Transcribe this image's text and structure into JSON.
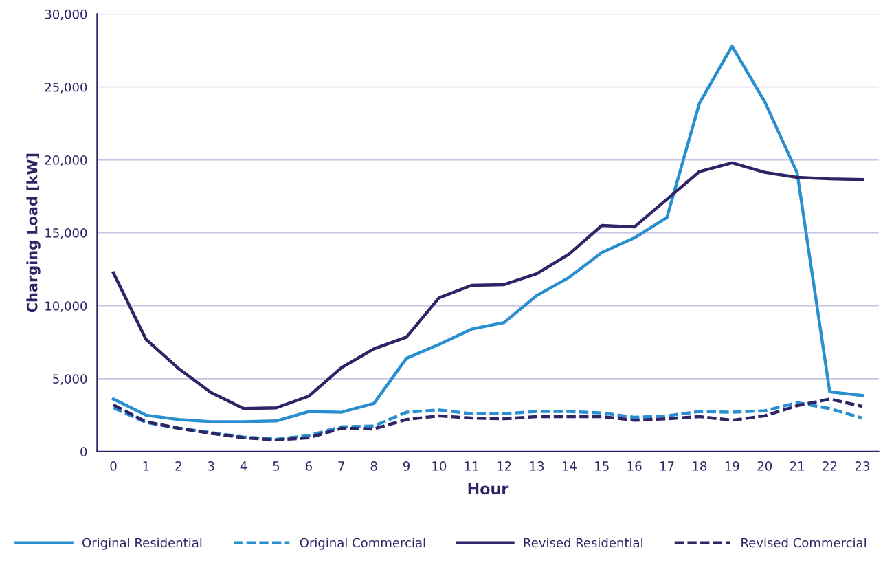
{
  "chart_data": {
    "type": "line",
    "xlabel": "Hour",
    "ylabel": "Charging Load [kW]",
    "categories": [
      "0",
      "1",
      "2",
      "3",
      "4",
      "5",
      "6",
      "7",
      "8",
      "9",
      "10",
      "11",
      "12",
      "13",
      "14",
      "15",
      "16",
      "17",
      "18",
      "19",
      "20",
      "21",
      "22",
      "23"
    ],
    "ylim": [
      0,
      30000
    ],
    "yticks": [
      {
        "value": 0,
        "label": "0"
      },
      {
        "value": 5000,
        "label": "5,000"
      },
      {
        "value": 10000,
        "label": "10,000"
      },
      {
        "value": 15000,
        "label": "15,000"
      },
      {
        "value": 20000,
        "label": "20,000"
      },
      {
        "value": 25000,
        "label": "25,000"
      },
      {
        "value": 30000,
        "label": "30,000"
      }
    ],
    "grid": "y",
    "legend": "bottom",
    "marker": "none",
    "series": [
      {
        "name": "Original Residential",
        "color": "#2a8fd0",
        "line_style": "solid",
        "values": [
          3600,
          2500,
          2200,
          2050,
          2050,
          2100,
          2750,
          2700,
          3300,
          6400,
          7350,
          8400,
          8850,
          10700,
          11950,
          13650,
          14650,
          16050,
          23900,
          27800,
          24000,
          19100,
          4100,
          3850
        ]
      },
      {
        "name": "Original Commercial",
        "color": "#2a8fd0",
        "line_style": "dashed",
        "values": [
          3000,
          2000,
          1600,
          1300,
          1000,
          850,
          1100,
          1700,
          1750,
          2700,
          2850,
          2600,
          2600,
          2750,
          2750,
          2650,
          2350,
          2450,
          2750,
          2700,
          2800,
          3350,
          2950,
          2300
        ]
      },
      {
        "name": "Revised Residential",
        "color": "#2e2466",
        "line_style": "solid",
        "values": [
          12250,
          7700,
          5700,
          4050,
          2950,
          3000,
          3800,
          5750,
          7050,
          7850,
          10550,
          11400,
          11450,
          12200,
          13550,
          15500,
          15400,
          17300,
          19200,
          19800,
          19150,
          18800,
          18700,
          18650
        ]
      },
      {
        "name": "Revised Commercial",
        "color": "#2e2466",
        "line_style": "dashed",
        "values": [
          3200,
          2050,
          1600,
          1250,
          950,
          800,
          950,
          1600,
          1550,
          2200,
          2450,
          2300,
          2250,
          2400,
          2400,
          2400,
          2150,
          2250,
          2400,
          2150,
          2450,
          3150,
          3600,
          3100
        ]
      }
    ]
  }
}
